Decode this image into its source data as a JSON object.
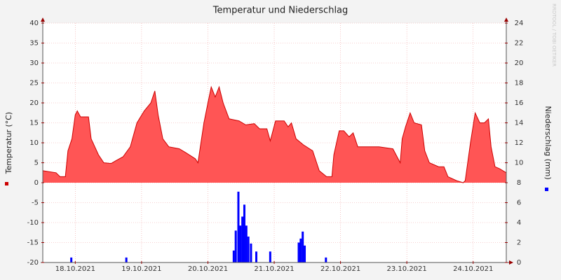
{
  "chart_data": {
    "type": "area",
    "title": "Temperatur und Niederschlag",
    "y_label": "Temperatur (°C)",
    "y2_label": "Niederschlag (mm)",
    "watermark": "RRDTOOL / TOBI OETIKER",
    "xlim": [
      -0.49,
      6.5
    ],
    "xticks": [
      {
        "value": 0,
        "label": "18.10.2021"
      },
      {
        "value": 1,
        "label": "19.10.2021"
      },
      {
        "value": 2,
        "label": "20.10.2021"
      },
      {
        "value": 3,
        "label": "21.10.2021"
      },
      {
        "value": 4,
        "label": "22.10.2021"
      },
      {
        "value": 5,
        "label": "23.10.2021"
      },
      {
        "value": 6,
        "label": "24.10.2021"
      }
    ],
    "ylim": [
      -20,
      40
    ],
    "yticks": [
      -20,
      -15,
      -10,
      -5,
      0,
      5,
      10,
      15,
      20,
      25,
      30,
      35,
      40
    ],
    "y2lim": [
      0,
      24
    ],
    "y2ticks": [
      0,
      2,
      4,
      6,
      8,
      10,
      12,
      14,
      16,
      18,
      20,
      22,
      24
    ],
    "grid": true,
    "series": [
      {
        "type": "area",
        "color": "#ff5555",
        "line_color": "#cc0000",
        "x": [
          -0.49,
          -0.29,
          -0.23,
          -0.15,
          -0.11,
          -0.05,
          0,
          0.03,
          0.08,
          0.2,
          0.24,
          0.35,
          0.43,
          0.54,
          0.61,
          0.72,
          0.83,
          0.93,
          1.04,
          1.14,
          1.2,
          1.25,
          1.32,
          1.41,
          1.57,
          1.67,
          1.81,
          1.85,
          1.94,
          2,
          2.05,
          2.11,
          2.17,
          2.23,
          2.32,
          2.47,
          2.57,
          2.7,
          2.78,
          2.89,
          2.94,
          3.02,
          3.15,
          3.21,
          3.26,
          3.33,
          3.44,
          3.58,
          3.68,
          3.79,
          3.87,
          3.9,
          3.98,
          4.05,
          4.13,
          4.19,
          4.26,
          4.37,
          4.58,
          4.79,
          4.9,
          4.93,
          4.98,
          5.05,
          5.11,
          5.22,
          5.27,
          5.34,
          5.48,
          5.56,
          5.62,
          5.75,
          5.85,
          5.88,
          5.96,
          6.03,
          6.1,
          6.17,
          6.23,
          6.27,
          6.33,
          6.4,
          6.5
        ],
        "values": [
          3,
          2.5,
          1.5,
          1.5,
          8,
          11,
          17,
          18,
          16.5,
          16.5,
          11,
          7,
          5,
          4.8,
          5.5,
          6.5,
          9,
          15,
          18,
          20,
          23,
          17,
          11,
          9,
          8.5,
          7.5,
          6,
          5,
          15,
          20,
          24,
          21.5,
          24,
          20,
          16,
          15.5,
          14.5,
          14.8,
          13.5,
          13.5,
          10.5,
          15.5,
          15.5,
          14,
          15,
          11,
          9.5,
          8,
          3,
          1.5,
          1.5,
          7,
          13,
          13,
          11.5,
          12.5,
          9,
          9,
          9,
          8.5,
          5,
          11,
          14,
          17.5,
          15,
          14.5,
          8,
          5,
          4,
          4,
          1.5,
          0.5,
          0,
          0.5,
          10,
          17.5,
          15,
          15,
          16,
          9,
          4,
          3.5,
          2.5
        ]
      },
      {
        "type": "bar",
        "axis": "y2",
        "color": "#0000ff",
        "x": [
          -0.06,
          0.77,
          2.39,
          2.42,
          2.46,
          2.49,
          2.52,
          2.55,
          2.58,
          2.61,
          2.65,
          2.73,
          2.94,
          3.37,
          3.4,
          3.43,
          3.46,
          3.78
        ],
        "values": [
          0.5,
          0.5,
          1.2,
          3.2,
          7.1,
          3.7,
          4.6,
          5.8,
          3.7,
          2.6,
          1.9,
          1.1,
          1.1,
          2,
          2.4,
          3.1,
          1.7,
          0.5
        ]
      }
    ]
  }
}
